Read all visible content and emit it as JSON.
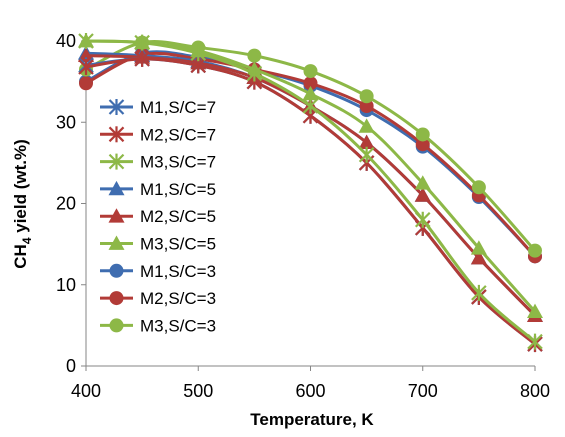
{
  "chart_data": {
    "type": "line",
    "xlabel": "Temperature, K",
    "ylabel_main": "CH",
    "ylabel_sub": "4",
    "ylabel_rest": " yield (wt.%)",
    "xlim": [
      400,
      800
    ],
    "ylim": [
      0,
      40
    ],
    "xticks": [
      400,
      500,
      600,
      700,
      800
    ],
    "yticks": [
      0,
      10,
      20,
      30,
      40
    ],
    "grid": false,
    "legend_position": "left-inside",
    "x": [
      400,
      450,
      500,
      550,
      600,
      650,
      700,
      750,
      800
    ],
    "series": [
      {
        "name": "M1,S/C=7",
        "color": "#3F6DB0",
        "marker": "asterisk",
        "values": [
          37.0,
          37.8,
          37.0,
          35.0,
          30.8,
          25.0,
          17.0,
          8.5,
          2.7
        ]
      },
      {
        "name": "M2,S/C=7",
        "color": "#B23B37",
        "marker": "asterisk",
        "values": [
          36.8,
          37.8,
          37.0,
          35.0,
          30.8,
          25.0,
          17.0,
          8.5,
          2.7
        ]
      },
      {
        "name": "M3,S/C=7",
        "color": "#8DB847",
        "marker": "asterisk",
        "values": [
          40.0,
          39.8,
          38.5,
          36.0,
          32.0,
          26.0,
          18.0,
          9.0,
          3.0
        ]
      },
      {
        "name": "M1,S/C=5",
        "color": "#3F6DB0",
        "marker": "triangle",
        "values": [
          38.5,
          38.2,
          37.5,
          35.5,
          32.0,
          27.5,
          21.0,
          13.3,
          6.2
        ]
      },
      {
        "name": "M2,S/C=5",
        "color": "#B23B37",
        "marker": "triangle",
        "values": [
          38.2,
          38.0,
          37.3,
          35.5,
          32.0,
          27.5,
          21.0,
          13.3,
          6.2
        ]
      },
      {
        "name": "M3,S/C=5",
        "color": "#8DB847",
        "marker": "triangle",
        "values": [
          40.0,
          39.8,
          38.8,
          36.5,
          33.5,
          29.5,
          22.5,
          14.5,
          6.7
        ]
      },
      {
        "name": "M1,S/C=3",
        "color": "#3F6DB0",
        "marker": "circle",
        "values": [
          35.0,
          38.5,
          38.0,
          36.5,
          34.5,
          31.5,
          27.0,
          20.8,
          13.5
        ]
      },
      {
        "name": "M2,S/C=3",
        "color": "#B23B37",
        "marker": "circle",
        "values": [
          34.8,
          38.3,
          37.8,
          36.5,
          34.8,
          32.0,
          27.3,
          21.0,
          13.5
        ]
      },
      {
        "name": "M3,S/C=3",
        "color": "#8DB847",
        "marker": "circle",
        "values": [
          36.5,
          39.8,
          39.2,
          38.2,
          36.3,
          33.2,
          28.5,
          22.0,
          14.2
        ]
      }
    ]
  }
}
